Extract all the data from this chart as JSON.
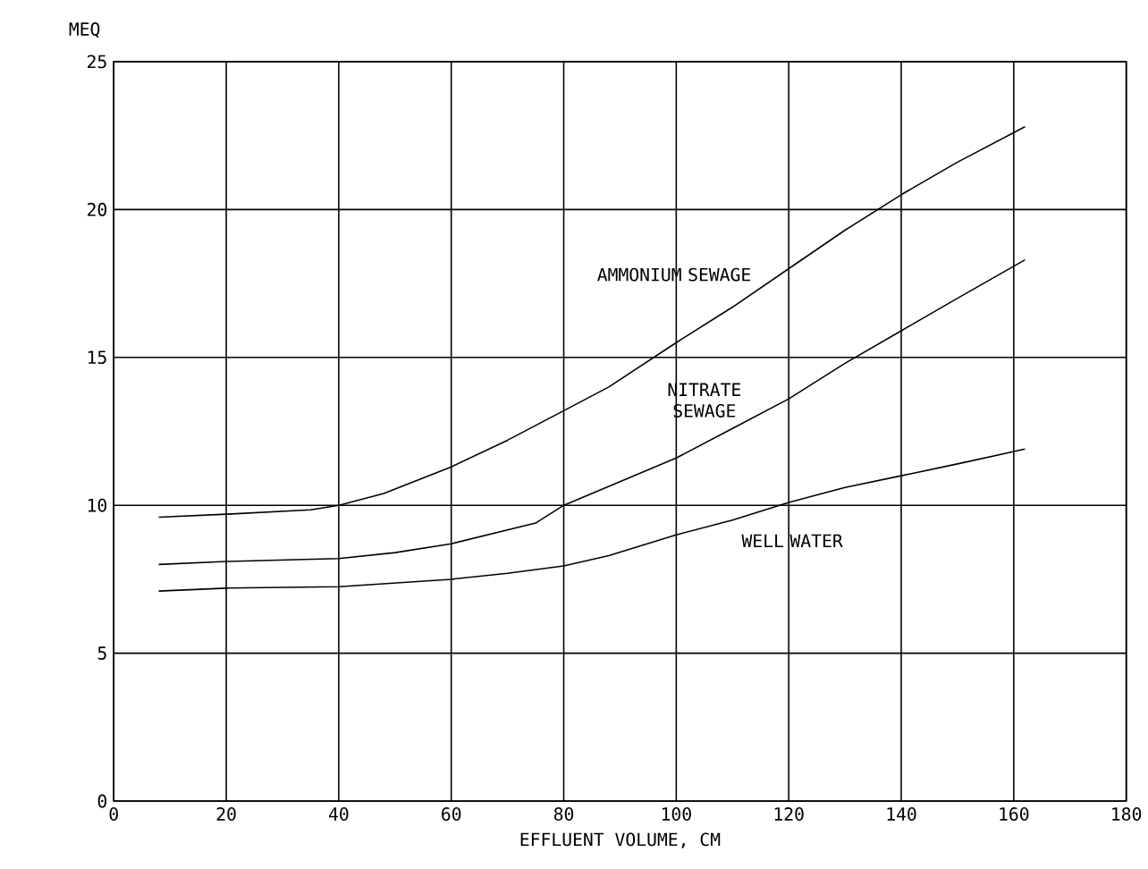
{
  "chart_data": {
    "type": "line",
    "xlabel": "EFFLUENT VOLUME, CM",
    "ylabel": "MEQ",
    "xlim": [
      0,
      180
    ],
    "ylim": [
      0,
      25
    ],
    "xticks": [
      0,
      20,
      40,
      60,
      80,
      100,
      120,
      140,
      160,
      180
    ],
    "yticks": [
      0,
      5,
      10,
      15,
      20,
      25
    ],
    "grid": true,
    "series": [
      {
        "name": "AMMONIUM SEWAGE",
        "color": "#000000",
        "x": [
          8,
          20,
          35,
          40,
          48,
          60,
          70,
          80,
          88,
          100,
          110,
          120,
          130,
          140,
          150,
          162
        ],
        "values": [
          9.6,
          9.7,
          9.85,
          10.0,
          10.4,
          11.3,
          12.2,
          13.2,
          14.0,
          15.5,
          16.7,
          18.0,
          19.3,
          20.5,
          21.6,
          22.8
        ]
      },
      {
        "name": "NITRATE SEWAGE",
        "color": "#000000",
        "x": [
          8,
          20,
          40,
          50,
          60,
          75,
          80,
          90,
          100,
          110,
          120,
          130,
          140,
          150,
          162
        ],
        "values": [
          8.0,
          8.1,
          8.2,
          8.4,
          8.7,
          9.4,
          10.0,
          10.8,
          11.6,
          12.6,
          13.6,
          14.8,
          15.9,
          17.0,
          18.3
        ]
      },
      {
        "name": "WELL WATER",
        "color": "#000000",
        "x": [
          8,
          20,
          40,
          60,
          70,
          80,
          88,
          100,
          110,
          120,
          130,
          140,
          150,
          162
        ],
        "values": [
          7.1,
          7.2,
          7.25,
          7.5,
          7.7,
          7.95,
          8.3,
          9.0,
          9.5,
          10.1,
          10.6,
          11.0,
          11.4,
          11.9
        ]
      }
    ]
  }
}
